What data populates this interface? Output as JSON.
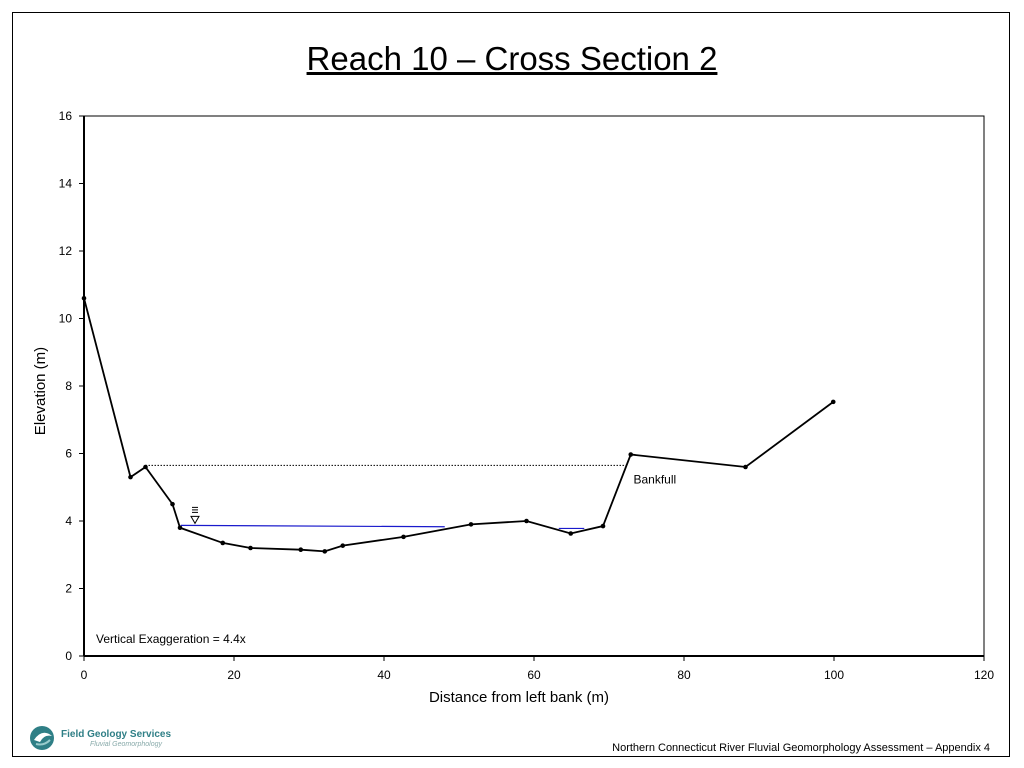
{
  "page": {
    "title": "Reach 10 – Cross Section 2",
    "footer": "Northern Connecticut River Fluvial Geomorphology Assessment – Appendix 4",
    "logo_text": "Field Geology Services",
    "logo_subtext": "Fluvial Geomorphology"
  },
  "chart_data": {
    "type": "line",
    "title": "",
    "xlabel": "Distance from left bank (m)",
    "ylabel": "Elevation (m)",
    "xlim": [
      0,
      120
    ],
    "ylim": [
      0,
      16
    ],
    "xticks": [
      0,
      20,
      40,
      60,
      80,
      100,
      120
    ],
    "yticks": [
      0,
      2,
      4,
      6,
      8,
      10,
      12,
      14,
      16
    ],
    "grid": false,
    "series": [
      {
        "x": [
          0,
          6.2,
          8.2,
          11.8,
          12.8,
          18.5,
          22.2,
          28.9,
          32.1,
          34.5,
          42.6,
          51.6,
          59.0,
          64.9,
          69.2,
          72.9,
          88.2,
          99.9
        ],
        "y": [
          10.6,
          5.3,
          5.6,
          4.5,
          3.8,
          3.35,
          3.2,
          3.15,
          3.1,
          3.27,
          3.53,
          3.9,
          4.0,
          3.63,
          3.85,
          5.97,
          5.6,
          7.53
        ],
        "color": "#000000",
        "markers": true
      }
    ],
    "bankfull": {
      "label": "Bankfull",
      "x": [
        8.2,
        72.6
      ],
      "y": 5.65,
      "color": "#000000"
    },
    "water_surface": {
      "segments": [
        {
          "x": [
            12.9,
            48.1
          ],
          "y": [
            3.87,
            3.83
          ]
        },
        {
          "x": [
            63.3,
            66.7
          ],
          "y": [
            3.78,
            3.78
          ]
        }
      ],
      "symbol_x": 14.8,
      "color": "#1a1acc"
    },
    "annotation": "Vertical Exaggeration = 4.4x"
  }
}
